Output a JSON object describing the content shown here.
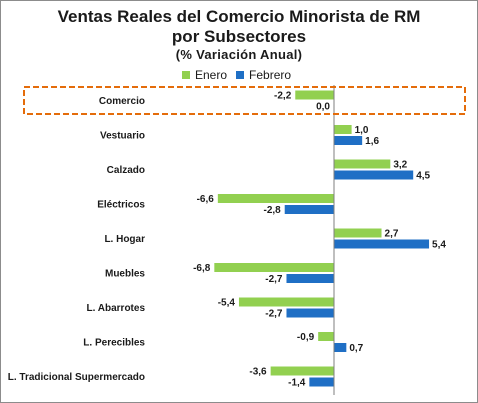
{
  "chart_data": {
    "type": "bar",
    "orientation": "horizontal",
    "title": "Ventas Reales del Comercio Minorista de RM",
    "title_line2": "por Subsectores",
    "subtitle": "(% Variación Anual)",
    "categories": [
      "Comercio",
      "Vestuario",
      "Calzado",
      "Eléctricos",
      "L. Hogar",
      "Muebles",
      "L. Abarrotes",
      "L. Perecibles",
      "L. Tradicional Supermercado"
    ],
    "series": [
      {
        "name": "Enero",
        "color": "#92d050",
        "values": [
          -2.2,
          1.0,
          3.2,
          -6.6,
          2.7,
          -6.8,
          -5.4,
          -0.9,
          -3.6
        ],
        "labels": [
          "-2,2",
          "1,0",
          "3,2",
          "-6,6",
          "2,7",
          "-6,8",
          "-5,4",
          "-0,9",
          "-3,6"
        ]
      },
      {
        "name": "Febrero",
        "color": "#1f6fc5",
        "values": [
          0.0,
          1.6,
          4.5,
          -2.8,
          5.4,
          -2.7,
          -2.7,
          0.7,
          -1.4
        ],
        "labels": [
          "0,0",
          "1,6",
          "4,5",
          "-2,8",
          "5,4",
          "-2,7",
          "-2,7",
          "0,7",
          "-1,4"
        ]
      }
    ],
    "xlim": [
      -7,
      5.5
    ],
    "highlight_category": "Comercio",
    "highlight_color": "#e46c0a",
    "legend_position": "top",
    "grid": false
  }
}
